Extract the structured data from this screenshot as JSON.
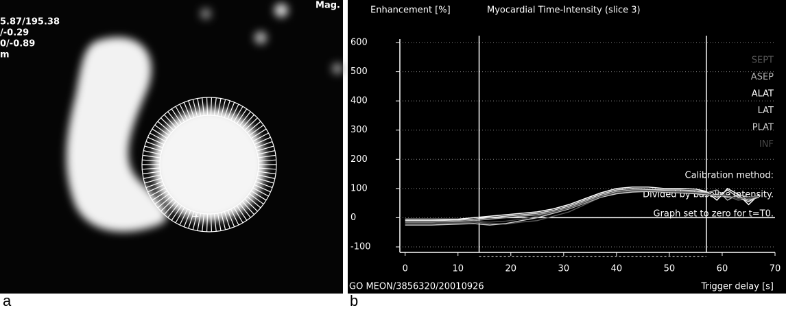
{
  "panel_labels": [
    "a",
    "b"
  ],
  "image_panel": {
    "texts": [
      "5.87/195.38",
      "/-0.29",
      "0/-0.89",
      "m"
    ],
    "corner_text": "Mag."
  },
  "chart_data": {
    "type": "line",
    "y_axis_label": "Enhancement [%]",
    "title": "Myocardial Time-Intensity (slice 3)",
    "x_axis_label": "Trigger delay [s]",
    "footer": "GO MEON/3856320/20010926",
    "annotations": [
      "Calibration method:",
      "Divided by baseline intensity.",
      "Graph set to zero for t=T0."
    ],
    "x": [
      0,
      5,
      10,
      13,
      16,
      19,
      22,
      25,
      28,
      31,
      34,
      37,
      40,
      43,
      46,
      49,
      52,
      55,
      57,
      59,
      61,
      63,
      65,
      67
    ],
    "series": [
      {
        "name": "SEPT",
        "color": "#5a5a5a",
        "values": [
          -20,
          -20,
          -18,
          -15,
          -20,
          -22,
          -15,
          -10,
          5,
          20,
          45,
          70,
          85,
          90,
          92,
          90,
          88,
          85,
          80,
          70,
          75,
          60,
          65,
          70
        ]
      },
      {
        "name": "ASEP",
        "color": "#b0b0b0",
        "values": [
          -15,
          -15,
          -12,
          -10,
          -5,
          0,
          5,
          10,
          20,
          35,
          55,
          75,
          90,
          95,
          95,
          92,
          90,
          88,
          85,
          95,
          60,
          80,
          70,
          75
        ]
      },
      {
        "name": "ALAT",
        "color": "#ffffff",
        "values": [
          -5,
          -5,
          -5,
          0,
          5,
          10,
          15,
          20,
          30,
          45,
          65,
          85,
          100,
          105,
          105,
          100,
          100,
          98,
          90,
          60,
          100,
          80,
          45,
          80
        ]
      },
      {
        "name": "LAT",
        "color": "#e0e0e0",
        "values": [
          -10,
          -10,
          -8,
          -5,
          0,
          5,
          10,
          15,
          25,
          40,
          60,
          80,
          95,
          100,
          98,
          95,
          95,
          92,
          88,
          70,
          95,
          70,
          55,
          75
        ]
      },
      {
        "name": "PLAT",
        "color": "#cccccc",
        "values": [
          -25,
          -25,
          -22,
          -20,
          -25,
          -20,
          -10,
          0,
          15,
          30,
          50,
          70,
          82,
          88,
          90,
          88,
          85,
          82,
          78,
          80,
          70,
          75,
          60,
          70
        ]
      },
      {
        "name": "INF",
        "color": "#4a4a4a",
        "values": [
          -18,
          -18,
          -15,
          -12,
          -15,
          -12,
          -5,
          5,
          18,
          32,
          52,
          72,
          86,
          92,
          93,
          90,
          88,
          86,
          82,
          75,
          78,
          65,
          70,
          72
        ]
      }
    ],
    "vlines": [
      14,
      57
    ],
    "xlim": [
      -1,
      70
    ],
    "ylim": [
      -100,
      600
    ],
    "xticks": [
      0,
      10,
      20,
      30,
      40,
      50,
      60,
      70
    ],
    "yticks": [
      -100,
      0,
      100,
      200,
      300,
      400,
      500,
      600
    ],
    "grid": true
  }
}
